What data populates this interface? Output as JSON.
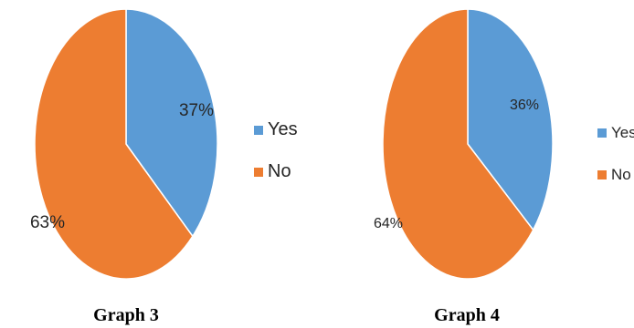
{
  "chart_data": [
    {
      "type": "pie",
      "title": "Graph 3",
      "categories": [
        "Yes",
        "No"
      ],
      "values": [
        37,
        63
      ],
      "labels": [
        "37%",
        "63%"
      ],
      "colors": [
        "#5b9bd5",
        "#ed7d31"
      ],
      "legend_position": "right"
    },
    {
      "type": "pie",
      "title": "Graph 4",
      "categories": [
        "Yes",
        "No"
      ],
      "values": [
        36,
        64
      ],
      "labels": [
        "36%",
        "64%"
      ],
      "colors": [
        "#5b9bd5",
        "#ed7d31"
      ],
      "legend_position": "right"
    }
  ]
}
